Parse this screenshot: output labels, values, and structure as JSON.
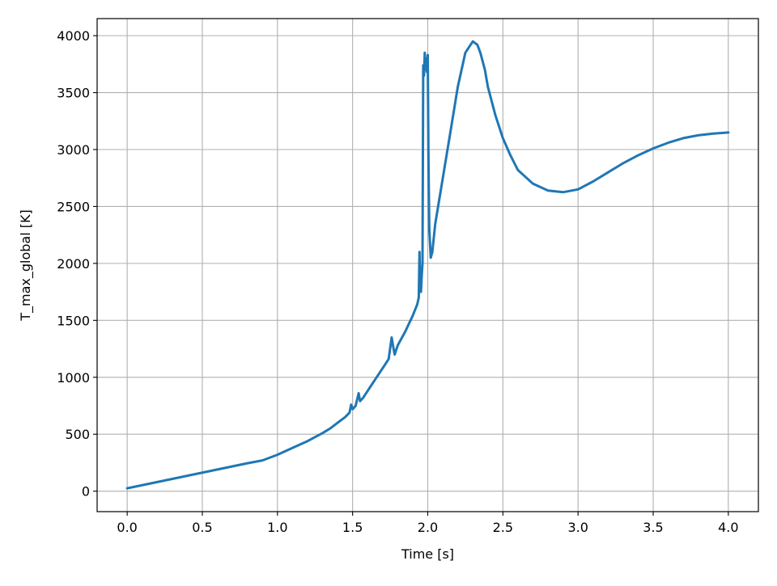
{
  "chart_data": {
    "type": "line",
    "title": "",
    "xlabel": "Time [s]",
    "ylabel": "T_max_global [K]",
    "xlim": [
      -0.2,
      4.2
    ],
    "ylim": [
      -180,
      4150
    ],
    "xticks": [
      0.0,
      0.5,
      1.0,
      1.5,
      2.0,
      2.5,
      3.0,
      3.5,
      4.0
    ],
    "xtick_labels": [
      "0.0",
      "0.5",
      "1.0",
      "1.5",
      "2.0",
      "2.5",
      "3.0",
      "3.5",
      "4.0"
    ],
    "yticks": [
      0,
      500,
      1000,
      1500,
      2000,
      2500,
      3000,
      3500,
      4000
    ],
    "ytick_labels": [
      "0",
      "500",
      "1000",
      "1500",
      "2000",
      "2500",
      "3000",
      "3500",
      "4000"
    ],
    "grid": true,
    "line_color": "#1f77b4",
    "series": [
      {
        "x": [
          0.0,
          0.2,
          0.4,
          0.6,
          0.8,
          0.9,
          1.0,
          1.1,
          1.2,
          1.3,
          1.35,
          1.4,
          1.45,
          1.48,
          1.49,
          1.5,
          1.52,
          1.54,
          1.55,
          1.57,
          1.6,
          1.62,
          1.65,
          1.68,
          1.7,
          1.72,
          1.74,
          1.76,
          1.77,
          1.78,
          1.8,
          1.85,
          1.9,
          1.93,
          1.94,
          1.945,
          1.95,
          1.955,
          1.96,
          1.965,
          1.97,
          1.975,
          1.98,
          1.985,
          1.99,
          1.995,
          2.0,
          2.005,
          2.01,
          2.02,
          2.03,
          2.05,
          2.1,
          2.15,
          2.2,
          2.25,
          2.3,
          2.33,
          2.35,
          2.38,
          2.4,
          2.45,
          2.5,
          2.55,
          2.6,
          2.7,
          2.8,
          2.9,
          3.0,
          3.1,
          3.2,
          3.3,
          3.4,
          3.5,
          3.6,
          3.7,
          3.8,
          3.9,
          4.0
        ],
        "y": [
          25,
          80,
          135,
          190,
          245,
          270,
          320,
          380,
          440,
          510,
          550,
          600,
          650,
          690,
          760,
          720,
          750,
          860,
          790,
          820,
          880,
          920,
          980,
          1040,
          1080,
          1120,
          1160,
          1350,
          1270,
          1200,
          1280,
          1400,
          1540,
          1640,
          1700,
          2100,
          1760,
          1750,
          1900,
          2000,
          3740,
          3650,
          3850,
          3700,
          3800,
          3680,
          3830,
          2900,
          2300,
          2050,
          2100,
          2350,
          2750,
          3150,
          3550,
          3850,
          3950,
          3920,
          3850,
          3700,
          3550,
          3300,
          3100,
          2950,
          2820,
          2700,
          2640,
          2625,
          2650,
          2720,
          2800,
          2880,
          2950,
          3010,
          3060,
          3100,
          3125,
          3140,
          3150
        ]
      }
    ]
  }
}
